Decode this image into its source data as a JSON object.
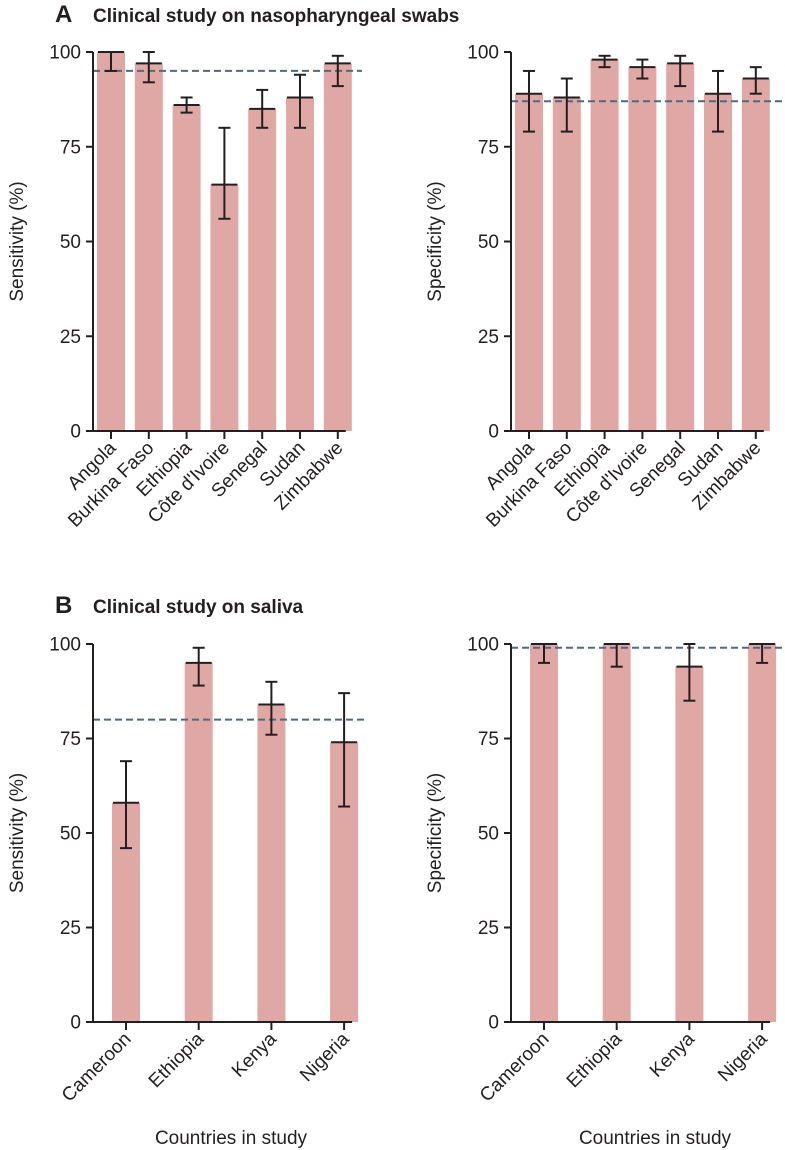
{
  "panels": {
    "A": {
      "letter": "A",
      "title": "Clinical study on nasopharyngeal swabs"
    },
    "B": {
      "letter": "B",
      "title": "Clinical study on saliva"
    }
  },
  "colors": {
    "bar": "#e0a8a4",
    "axis": "#231f20",
    "error": "#231f20",
    "reference": "#4a6b82"
  },
  "chart_data": [
    {
      "id": "A-sensitivity",
      "panel": "A",
      "type": "bar",
      "ylabel": "Sensitivity (%)",
      "xlabel": "",
      "ylim": [
        0,
        100
      ],
      "yticks": [
        0,
        25,
        50,
        75,
        100
      ],
      "categories": [
        "Angola",
        "Burkina Faso",
        "Ethiopia",
        "Côte d'Ivoire",
        "Senegal",
        "Sudan",
        "Zimbabwe"
      ],
      "values": [
        100,
        97,
        86,
        65,
        85,
        88,
        97
      ],
      "error_low": [
        95,
        92,
        84,
        56,
        80,
        80,
        91
      ],
      "error_high": [
        100,
        100,
        88,
        80,
        90,
        94,
        99
      ],
      "reference_line": 95
    },
    {
      "id": "A-specificity",
      "panel": "A",
      "type": "bar",
      "ylabel": "Specificity (%)",
      "xlabel": "",
      "ylim": [
        0,
        100
      ],
      "yticks": [
        0,
        25,
        50,
        75,
        100
      ],
      "categories": [
        "Angola",
        "Burkina Faso",
        "Ethiopia",
        "Côte d'Ivoire",
        "Senegal",
        "Sudan",
        "Zimbabwe"
      ],
      "values": [
        89,
        88,
        98,
        96,
        97,
        89,
        93
      ],
      "error_low": [
        79,
        79,
        96,
        93,
        91,
        79,
        89
      ],
      "error_high": [
        95,
        93,
        99,
        98,
        99,
        95,
        96
      ],
      "reference_line": 87
    },
    {
      "id": "B-sensitivity",
      "panel": "B",
      "type": "bar",
      "ylabel": "Sensitivity (%)",
      "xlabel": "Countries in study",
      "ylim": [
        0,
        100
      ],
      "yticks": [
        0,
        25,
        50,
        75,
        100
      ],
      "categories": [
        "Cameroon",
        "Ethiopia",
        "Kenya",
        "Nigeria"
      ],
      "values": [
        58,
        95,
        84,
        74
      ],
      "error_low": [
        46,
        89,
        76,
        57
      ],
      "error_high": [
        69,
        99,
        90,
        87
      ],
      "reference_line": 80
    },
    {
      "id": "B-specificity",
      "panel": "B",
      "type": "bar",
      "ylabel": "Specificity (%)",
      "xlabel": "Countries in study",
      "ylim": [
        0,
        100
      ],
      "yticks": [
        0,
        25,
        50,
        75,
        100
      ],
      "categories": [
        "Cameroon",
        "Ethiopia",
        "Kenya",
        "Nigeria"
      ],
      "values": [
        100,
        100,
        94,
        100
      ],
      "error_low": [
        95,
        94,
        85,
        95
      ],
      "error_high": [
        100,
        100,
        100,
        100
      ],
      "reference_line": 99
    }
  ]
}
